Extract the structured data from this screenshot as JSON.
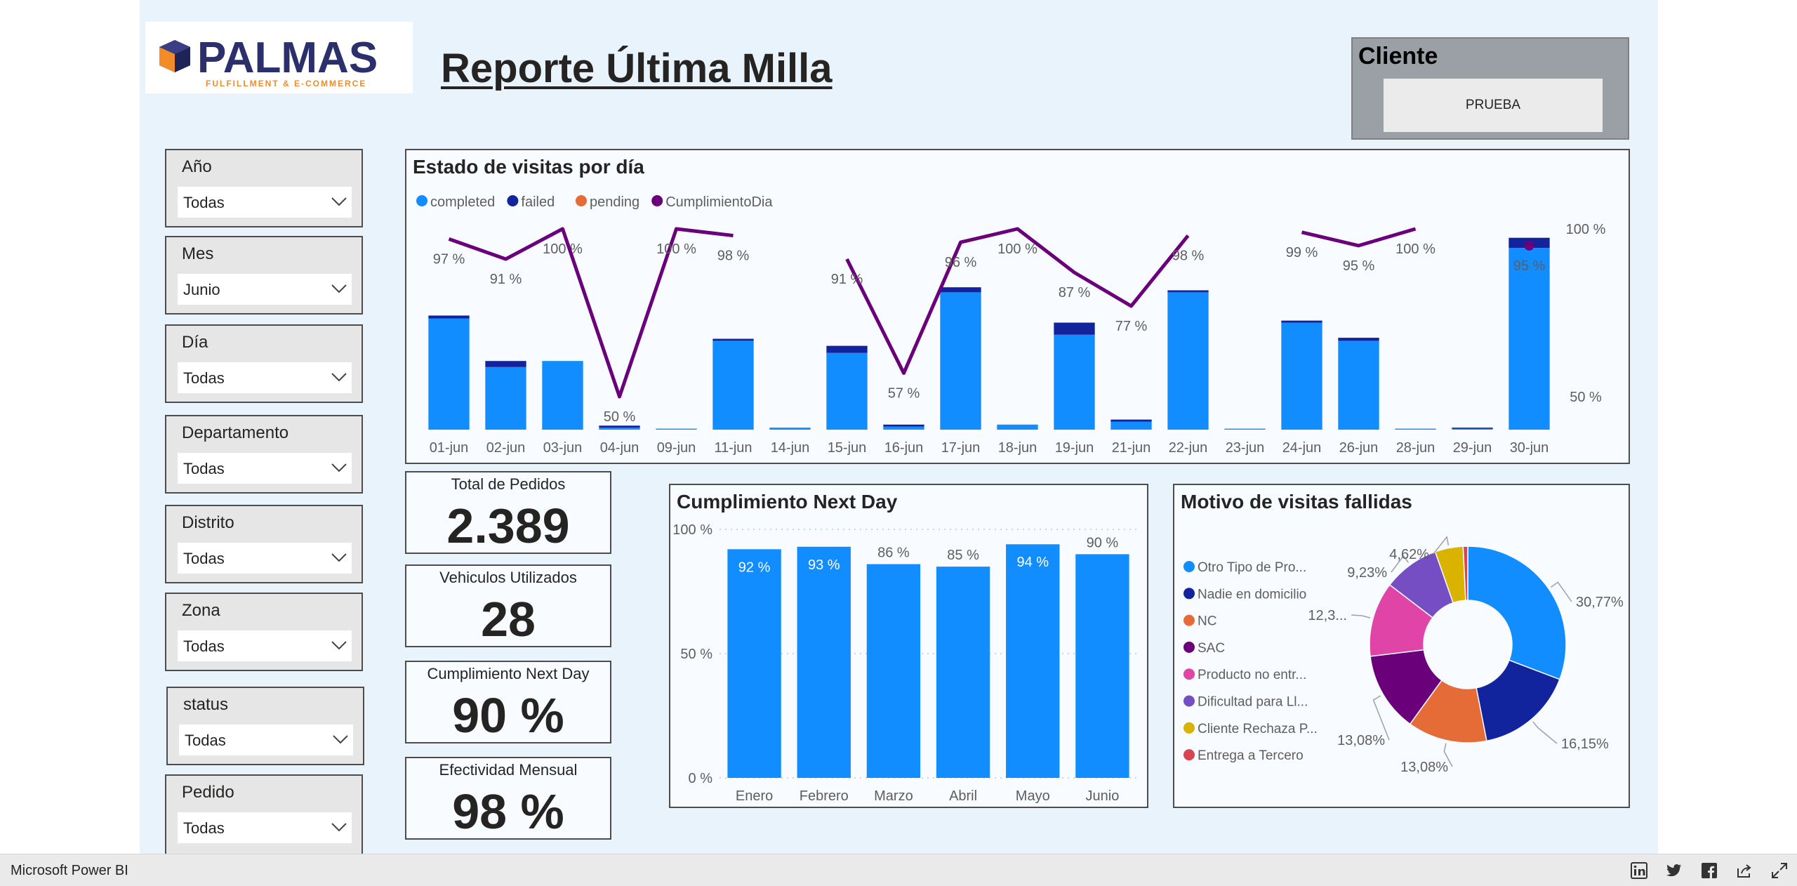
{
  "header": {
    "logo_text": "PALMAS",
    "logo_subtext": "FULFILLMENT & E-COMMERCE",
    "report_title": "Reporte Última Milla"
  },
  "cliente": {
    "label": "Cliente",
    "value": "PRUEBA"
  },
  "slicers": [
    {
      "title": "Año",
      "value": "Todas"
    },
    {
      "title": "Mes",
      "value": "Junio"
    },
    {
      "title": "Día",
      "value": "Todas"
    },
    {
      "title": "Departamento",
      "value": "Todas"
    },
    {
      "title": "Distrito",
      "value": "Todas"
    },
    {
      "title": "Zona",
      "value": "Todas"
    },
    {
      "title": "status",
      "value": "Todas"
    },
    {
      "title": "Pedido",
      "value": "Todas"
    }
  ],
  "kpis": [
    {
      "label": "Total de Pedidos",
      "value": "2.389"
    },
    {
      "label": "Vehiculos Utilizados",
      "value": "28"
    },
    {
      "label": "Cumplimiento Next Day",
      "value": "90 %"
    },
    {
      "label": "Efectividad Mensual",
      "value": "98 %"
    }
  ],
  "colors": {
    "completed": "#118dff",
    "failed": "#12239e",
    "pending": "#e66c37",
    "line": "#6b007b",
    "text": "#252423",
    "muted": "#605e5c"
  },
  "chart_data": [
    {
      "type": "bar",
      "title": "Estado de visitas por día",
      "legend": [
        "completed",
        "failed",
        "pending",
        "CumplimientoDia"
      ],
      "categories": [
        "01-jun",
        "02-jun",
        "03-jun",
        "04-jun",
        "09-jun",
        "11-jun",
        "14-jun",
        "15-jun",
        "16-jun",
        "17-jun",
        "18-jun",
        "19-jun",
        "21-jun",
        "22-jun",
        "23-jun",
        "24-jun",
        "26-jun",
        "28-jun",
        "29-jun",
        "30-jun"
      ],
      "series": [
        {
          "name": "completed",
          "values": [
            110,
            62,
            68,
            2,
            1,
            88,
            2,
            76,
            3,
            136,
            5,
            94,
            8,
            136,
            1,
            106,
            88,
            1,
            1,
            180
          ]
        },
        {
          "name": "failed",
          "values": [
            3,
            6,
            0,
            2,
            0,
            2,
            0,
            7,
            2,
            5,
            0,
            12,
            2,
            2,
            0,
            2,
            3,
            0,
            1,
            10
          ]
        },
        {
          "name": "pending",
          "values": [
            0,
            0,
            0,
            0,
            0,
            0,
            0,
            0,
            0,
            0,
            0,
            0,
            0,
            0,
            0,
            0,
            0,
            0,
            0,
            0
          ]
        },
        {
          "name": "CumplimientoDia",
          "axis": "right",
          "values": [
            97,
            91,
            100,
            50,
            100,
            98,
            null,
            91,
            57,
            96,
            100,
            87,
            77,
            98,
            null,
            99,
            95,
            100,
            null,
            95
          ]
        }
      ],
      "line_labels": [
        "97 %",
        "91 %",
        "100 %",
        "50 %",
        "100 %",
        "98 %",
        "",
        "91 %",
        "57 %",
        "96 %",
        "100 %",
        "87 %",
        "77 %",
        "98 %",
        "",
        "99 %",
        "95 %",
        "100 %",
        "",
        "95 %"
      ],
      "y2_ticks": [
        "100 %",
        "50 %"
      ],
      "ylim": [
        0,
        200
      ],
      "y2lim": [
        42,
        102
      ]
    },
    {
      "type": "bar",
      "title": "Cumplimiento Next Day",
      "categories": [
        "Enero",
        "Febrero",
        "Marzo",
        "Abril",
        "Mayo",
        "Junio"
      ],
      "values": [
        92,
        93,
        86,
        85,
        94,
        90
      ],
      "labels": [
        "92 %",
        "93 %",
        "86 %",
        "85 %",
        "94 %",
        "90 %"
      ],
      "y_ticks": [
        "100 %",
        "50 %",
        "0 %"
      ],
      "ylim": [
        0,
        100
      ]
    },
    {
      "type": "pie",
      "title": "Motivo de visitas fallidas",
      "legend": [
        "Otro Tipo de Pro...",
        "Nadie en domicilio",
        "NC",
        "SAC",
        "Producto no entr...",
        "Dificultad para Ll...",
        "Cliente Rechaza P...",
        "Entrega a Tercero"
      ],
      "values": [
        30.77,
        16.15,
        13.08,
        13.08,
        12.31,
        9.23,
        4.62,
        0.76
      ],
      "slice_labels": [
        "30,77%",
        "16,15%",
        "13,08%",
        "13,08%",
        "12,3...",
        "9,23%",
        "4,62%",
        ""
      ],
      "colors": [
        "#118dff",
        "#12239e",
        "#e66c37",
        "#6b007b",
        "#e044a7",
        "#744ec2",
        "#d9b300",
        "#d64550"
      ]
    }
  ],
  "footer": {
    "brand": "Microsoft Power BI"
  }
}
